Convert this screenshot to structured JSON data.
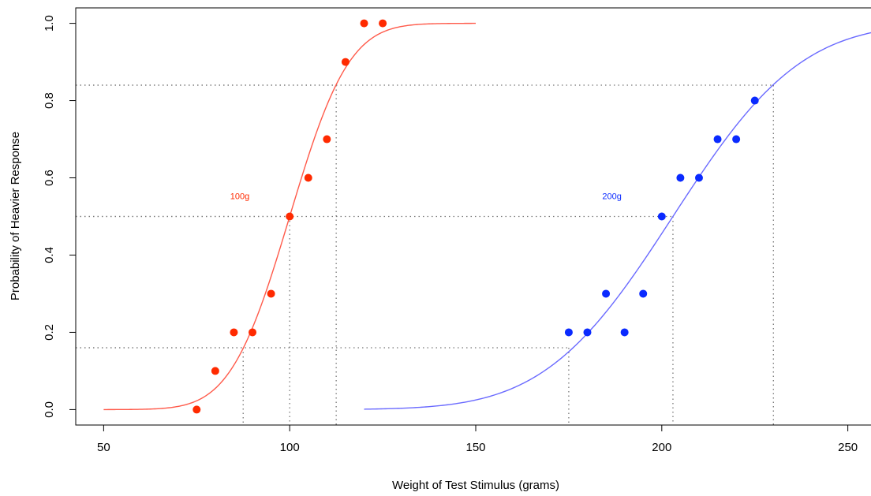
{
  "chart_data": {
    "type": "scatter",
    "title": "",
    "xlabel": "Weight of Test Stimulus (grams)",
    "ylabel": "Probability of Heavier Response",
    "xlim": [
      42.5,
      257.5
    ],
    "ylim": [
      -0.04,
      1.04
    ],
    "x_ticks": [
      50,
      100,
      150,
      200,
      250
    ],
    "y_ticks": [
      0.0,
      0.2,
      0.4,
      0.6,
      0.8,
      1.0
    ],
    "x_tick_labels": [
      "50",
      "100",
      "150",
      "200",
      "250"
    ],
    "y_tick_labels": [
      "0.0",
      "0.2",
      "0.4",
      "0.6",
      "0.8",
      "1.0"
    ],
    "grid": false,
    "series": [
      {
        "name": "100g",
        "color": "#ff2a00",
        "curve_color": "#ff5a4a",
        "points": {
          "x": [
            75,
            80,
            85,
            90,
            95,
            100,
            105,
            110,
            115,
            120,
            125
          ],
          "y": [
            0.0,
            0.1,
            0.2,
            0.2,
            0.3,
            0.5,
            0.6,
            0.7,
            0.9,
            1.0,
            1.0
          ]
        },
        "fit": {
          "function": "normal_cdf",
          "mean": 100,
          "sd": 12.5,
          "x_range": [
            50,
            150
          ]
        },
        "guides": [
          {
            "x": 87.5,
            "y": 0.16
          },
          {
            "x": 100,
            "y": 0.5
          },
          {
            "x": 112.5,
            "y": 0.84
          }
        ],
        "label": {
          "text": "100g",
          "x": 84,
          "y": 0.545
        }
      },
      {
        "name": "200g",
        "color": "#0a2aff",
        "curve_color": "#6a6aff",
        "points": {
          "x": [
            175,
            180,
            185,
            190,
            195,
            200,
            205,
            210,
            215,
            220,
            225
          ],
          "y": [
            0.2,
            0.2,
            0.3,
            0.2,
            0.3,
            0.5,
            0.6,
            0.6,
            0.7,
            0.7,
            0.8
          ]
        },
        "fit": {
          "function": "normal_cdf",
          "mean": 203,
          "sd": 27,
          "x_range": [
            120,
            257.5
          ]
        },
        "guides": [
          {
            "x": 175,
            "y": 0.16
          },
          {
            "x": 203,
            "y": 0.5
          },
          {
            "x": 230,
            "y": 0.84
          }
        ],
        "label": {
          "text": "200g",
          "x": 184,
          "y": 0.545
        }
      }
    ]
  }
}
